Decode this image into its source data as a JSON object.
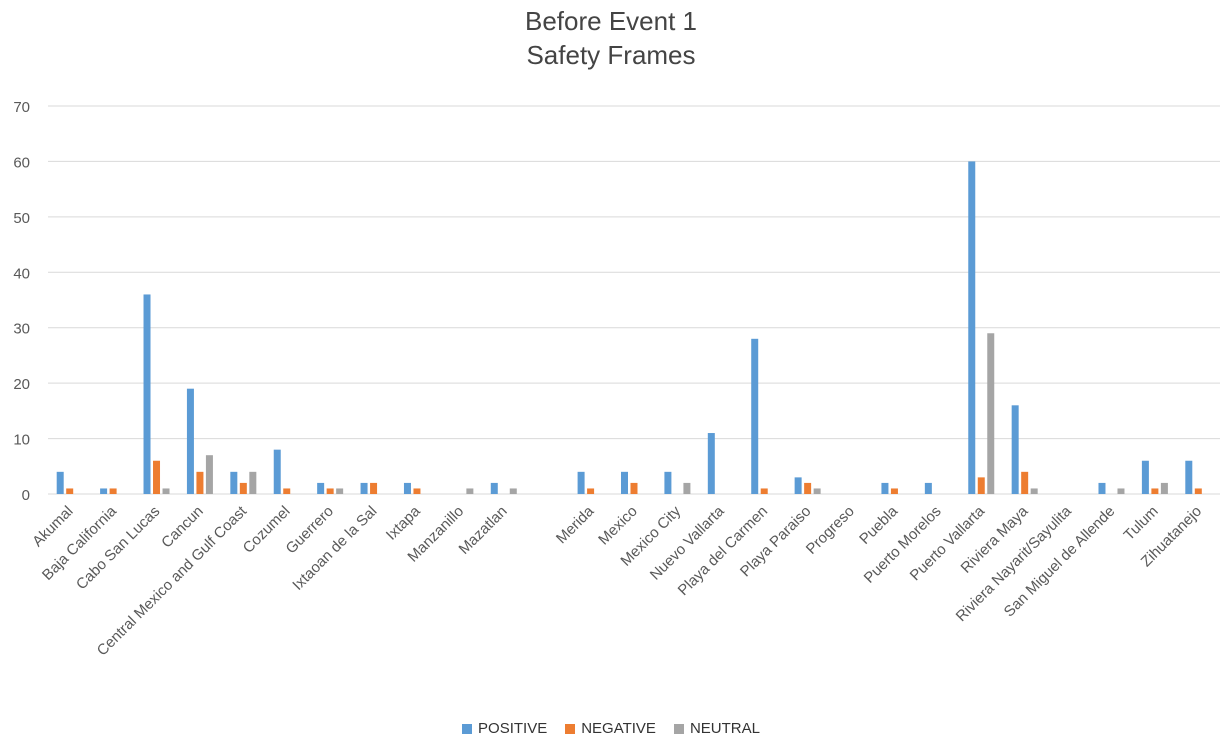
{
  "chart_data": {
    "type": "bar",
    "title": "Before Event 1",
    "subtitle": "Safety Frames",
    "xlabel": "",
    "ylabel": "",
    "ylim": [
      0,
      70
    ],
    "yticks": [
      0,
      10,
      20,
      30,
      40,
      50,
      60,
      70
    ],
    "grid": true,
    "legend_position": "bottom",
    "categories": [
      "Akumal",
      "Baja California",
      "Cabo San Lucas",
      "Cancun",
      "Central Mexico and Gulf Coast",
      "Cozumel",
      "Guerrero",
      "Ixtaoan de la Sal",
      "Ixtapa",
      "Manzanillo",
      "Mazatlan",
      "",
      "Merida",
      "Mexico",
      "Mexico City",
      "Nuevo Vallarta",
      "Playa del Carmen",
      "Playa Paraiso",
      "Progreso",
      "Puebla",
      "Puerto Morelos",
      "Puerto Vallarta",
      "Riviera Maya",
      "Riviera Nayarit/Sayulita",
      "San Miguel de Allende",
      "Tulum",
      "Zihuatanejo"
    ],
    "series": [
      {
        "name": "POSITIVE",
        "color": "#5B9BD5",
        "values": [
          4,
          1,
          36,
          19,
          4,
          8,
          2,
          2,
          2,
          0,
          2,
          0,
          4,
          4,
          4,
          11,
          28,
          3,
          0,
          2,
          2,
          60,
          16,
          0,
          2,
          6,
          6
        ]
      },
      {
        "name": "NEGATIVE",
        "color": "#ED7D31",
        "values": [
          1,
          1,
          6,
          4,
          2,
          1,
          1,
          2,
          1,
          0,
          0,
          0,
          1,
          2,
          0,
          0,
          1,
          2,
          0,
          1,
          0,
          3,
          4,
          0,
          0,
          1,
          1
        ]
      },
      {
        "name": "NEUTRAL",
        "color": "#A5A5A5",
        "values": [
          0,
          0,
          1,
          7,
          4,
          0,
          1,
          0,
          0,
          1,
          1,
          0,
          0,
          0,
          2,
          0,
          0,
          1,
          0,
          0,
          0,
          29,
          1,
          0,
          1,
          2,
          0
        ]
      }
    ]
  }
}
